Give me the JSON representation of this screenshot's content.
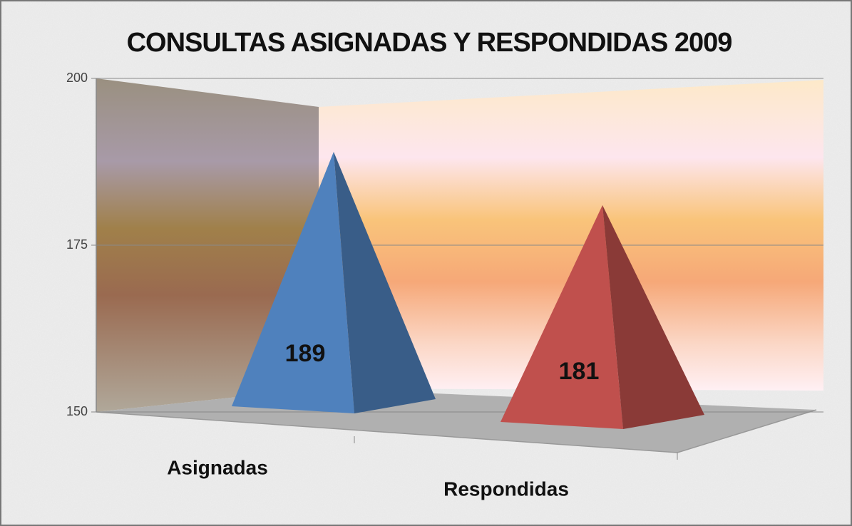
{
  "chart_data": {
    "type": "pyramid",
    "title": "CONSULTAS ASIGNADAS Y RESPONDIDAS 2009",
    "categories": [
      "Asignadas",
      "Respondidas"
    ],
    "values": [
      189,
      181
    ],
    "colors": [
      "#4f81bd",
      "#c0504d"
    ],
    "ylim": [
      150,
      200
    ],
    "yticks": [
      150,
      175,
      200
    ],
    "grid": true
  }
}
